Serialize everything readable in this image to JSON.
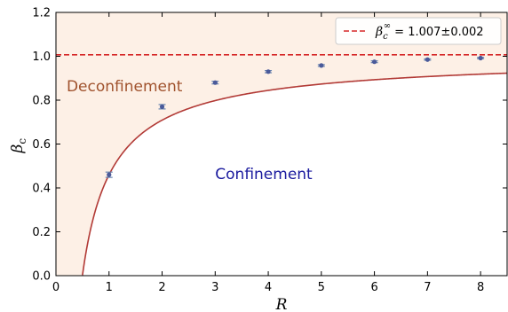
{
  "chart_data": {
    "type": "line",
    "xlabel": "R",
    "ylabel": "β",
    "ylabel_sub": "c",
    "xlim": [
      0,
      8.5
    ],
    "ylim": [
      0,
      1.2
    ],
    "x_ticks": [
      "0",
      "1",
      "2",
      "3",
      "4",
      "5",
      "6",
      "7",
      "8"
    ],
    "y_ticks": [
      "0.0",
      "0.2",
      "0.4",
      "0.6",
      "0.8",
      "1.0",
      "1.2"
    ],
    "grid": false,
    "legend_position": "top-right",
    "series": [
      {
        "kind": "points",
        "x": [
          1,
          2,
          3,
          4,
          5,
          6,
          7,
          8
        ],
        "y": [
          0.46,
          0.77,
          0.88,
          0.93,
          0.958,
          0.975,
          0.985,
          0.992
        ],
        "yerr": [
          0.012,
          0.01,
          0.006,
          0.005,
          0.004,
          0.004,
          0.003,
          0.003
        ],
        "color": "#4a5a9a",
        "errcolor": "#6a86b0"
      },
      {
        "kind": "fit",
        "color": "#b23a36",
        "x_start": 0.5,
        "x_end": 8.5,
        "fit_a": 1.007,
        "fit_b": 0.5472,
        "fit_c": 0.8763
      },
      {
        "kind": "hline",
        "name": "β_c^∞ = 1.007±0.002",
        "y": 1.007,
        "color": "#d62728"
      }
    ],
    "legend": {
      "beta": "β",
      "sub": "c",
      "sup": "∞",
      "value": " = 1.007±0.002"
    },
    "annotations": [
      {
        "text": "Deconfinement",
        "x": 0.2,
        "y": 0.865,
        "color": "#a0522d"
      },
      {
        "text": "Confinement",
        "x": 3.0,
        "y": 0.465,
        "color": "#1a1a9e"
      }
    ],
    "shade_color": "#fdf0e6"
  }
}
